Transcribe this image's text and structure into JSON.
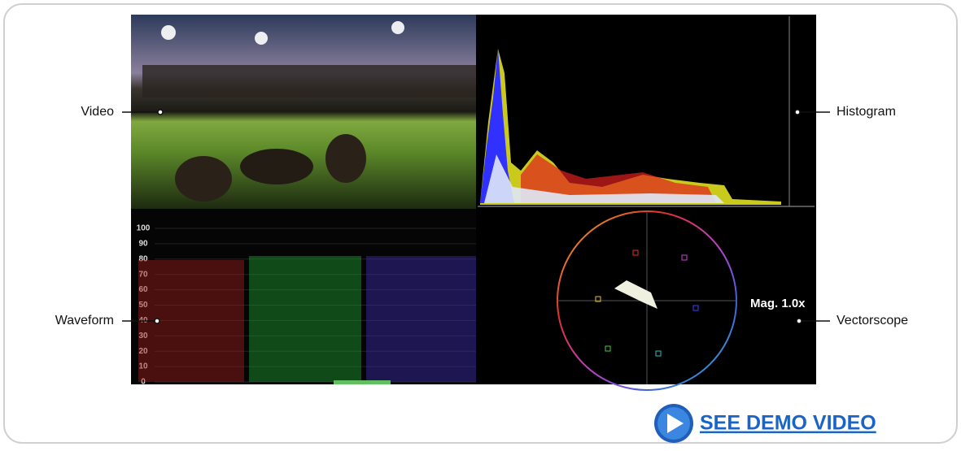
{
  "callouts": {
    "video": "Video",
    "histogram": "Histogram",
    "waveform": "Waveform",
    "vectorscope": "Vectorscope"
  },
  "waveform_scale": [
    "100",
    "90",
    "80",
    "70",
    "60",
    "50",
    "40",
    "30",
    "20",
    "10",
    "0"
  ],
  "vectorscope_magnification": "Mag. 1.0x",
  "demo_button": "SEE DEMO VIDEO"
}
